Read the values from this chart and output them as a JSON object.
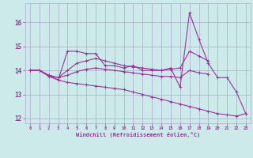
{
  "xlabel": "Windchill (Refroidissement éolien,°C)",
  "background_color": "#cceaea",
  "grid_color": "#aaaacc",
  "line_color": "#993399",
  "x_values": [
    0,
    1,
    2,
    3,
    4,
    5,
    6,
    7,
    8,
    9,
    10,
    11,
    12,
    13,
    14,
    15,
    16,
    17,
    18,
    19,
    20,
    21,
    22,
    23
  ],
  "series1": [
    14.0,
    14.0,
    13.8,
    13.6,
    14.8,
    14.8,
    14.7,
    14.7,
    14.2,
    14.2,
    14.1,
    14.2,
    14.0,
    14.0,
    14.0,
    14.1,
    13.3,
    16.4,
    15.3,
    14.3,
    13.7,
    13.7,
    13.1,
    12.2
  ],
  "series2": [
    14.0,
    14.0,
    13.8,
    13.7,
    14.0,
    14.3,
    14.4,
    14.5,
    14.4,
    14.3,
    14.2,
    14.15,
    14.1,
    14.05,
    14.0,
    14.05,
    14.1,
    14.8,
    14.6,
    14.4,
    null,
    null,
    null,
    null
  ],
  "series3": [
    14.0,
    14.0,
    13.8,
    13.7,
    13.8,
    13.95,
    14.05,
    14.1,
    14.05,
    14.0,
    13.95,
    13.9,
    13.85,
    13.8,
    13.75,
    13.75,
    13.7,
    14.0,
    13.9,
    13.85,
    null,
    null,
    null,
    null
  ],
  "series4": [
    14.0,
    14.0,
    13.75,
    13.6,
    13.5,
    13.45,
    13.4,
    13.35,
    13.3,
    13.25,
    13.2,
    13.1,
    13.0,
    12.9,
    12.8,
    12.7,
    12.6,
    12.5,
    12.4,
    12.3,
    12.2,
    12.15,
    12.1,
    12.2
  ],
  "ylim": [
    11.8,
    16.8
  ],
  "xlim": [
    -0.5,
    23.5
  ],
  "yticks": [
    12,
    13,
    14,
    15,
    16
  ],
  "xticks": [
    0,
    1,
    2,
    3,
    4,
    5,
    6,
    7,
    8,
    9,
    10,
    11,
    12,
    13,
    14,
    15,
    16,
    17,
    18,
    19,
    20,
    21,
    22,
    23
  ]
}
